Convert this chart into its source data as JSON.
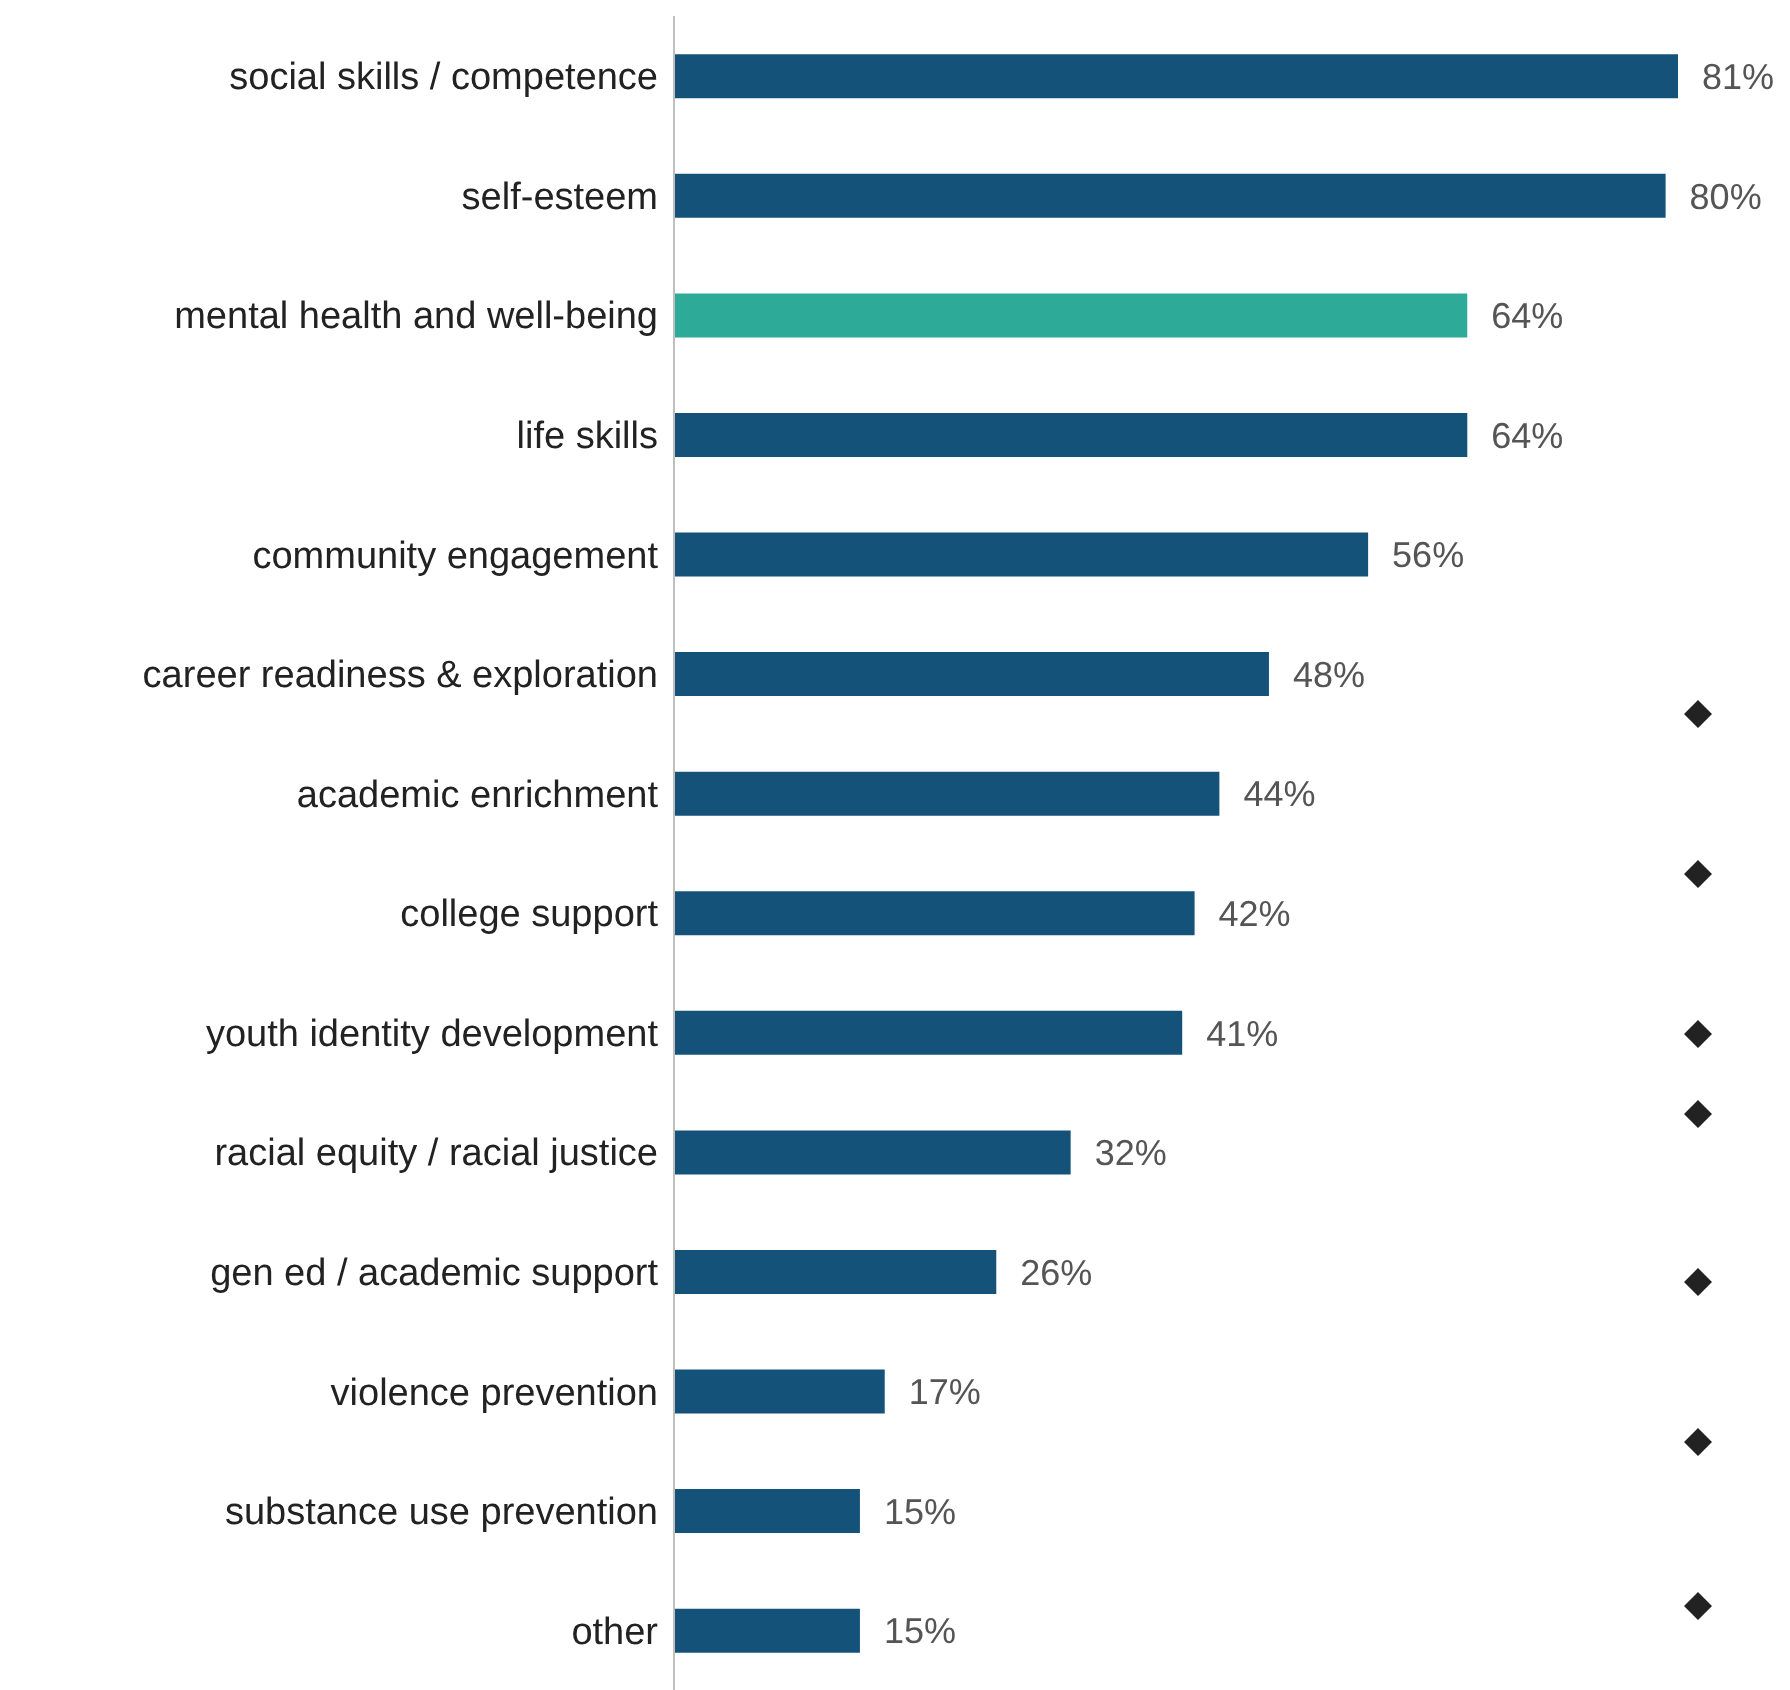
{
  "chart_data": {
    "type": "bar",
    "orientation": "horizontal",
    "categories": [
      "social skills / competence",
      "self-esteem",
      "mental health and well-being",
      "life skills",
      "community engagement",
      "career readiness & exploration",
      "academic enrichment",
      "college support",
      "youth identity development",
      "racial equity / racial justice",
      "gen ed / academic support",
      "violence prevention",
      "substance use prevention",
      "other"
    ],
    "values": [
      81,
      80,
      64,
      64,
      56,
      48,
      44,
      42,
      41,
      32,
      26,
      17,
      15,
      15
    ],
    "value_labels": [
      "81%",
      "80%",
      "64%",
      "64%",
      "56%",
      "48%",
      "44%",
      "42%",
      "41%",
      "32%",
      "26%",
      "17%",
      "15%",
      "15%"
    ],
    "colors": [
      "#15527a",
      "#15527a",
      "#2eaa98",
      "#15527a",
      "#15527a",
      "#15527a",
      "#15527a",
      "#15527a",
      "#15527a",
      "#15527a",
      "#15527a",
      "#15527a",
      "#15527a",
      "#15527a"
    ]
  }
}
